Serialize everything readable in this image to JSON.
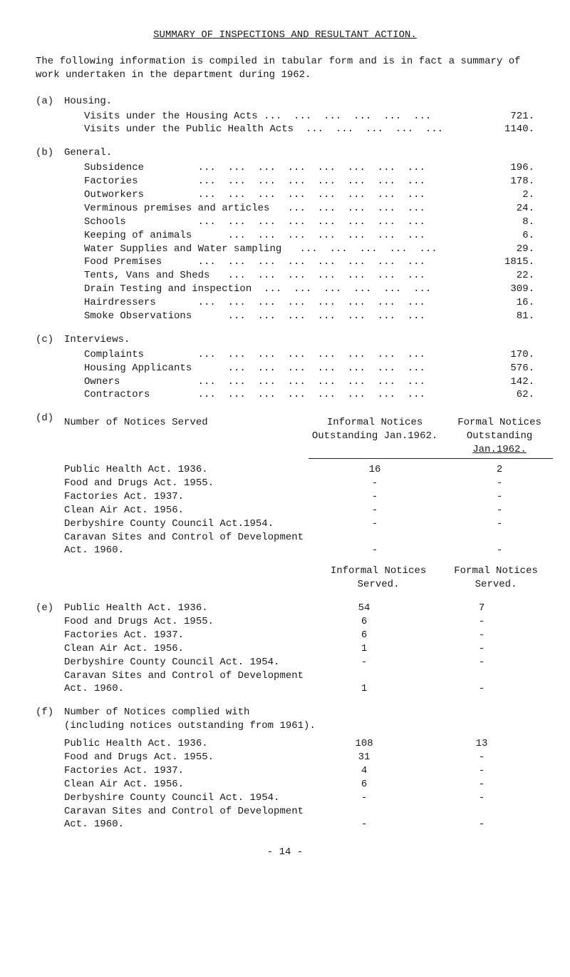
{
  "title": "SUMMARY OF INSPECTIONS AND RESULTANT ACTION.",
  "intro": "The following information is compiled in tabular form and is in fact a summary of work undertaken in the department during 1962.",
  "sections": {
    "a": {
      "label": "(a)",
      "heading": "Housing.",
      "rows": [
        {
          "label": "Visits under the Housing Acts ...  ...  ...  ...  ...  ...",
          "val": "721."
        },
        {
          "label": "Visits under the Public Health Acts  ...  ...  ...  ...  ...",
          "val": "1140."
        }
      ]
    },
    "b": {
      "label": "(b)",
      "heading": "General.",
      "rows": [
        {
          "label": "Subsidence         ...  ...  ...  ...  ...  ...  ...  ...",
          "val": "196."
        },
        {
          "label": "Factories          ...  ...  ...  ...  ...  ...  ...  ...",
          "val": "178."
        },
        {
          "label": "Outworkers         ...  ...  ...  ...  ...  ...  ...  ...",
          "val": "2."
        },
        {
          "label": "Verminous premises and articles   ...  ...  ...  ...  ...",
          "val": "24."
        },
        {
          "label": "Schools            ...  ...  ...  ...  ...  ...  ...  ...",
          "val": "8."
        },
        {
          "label": "Keeping of animals      ...  ...  ...  ...  ...  ...  ...",
          "val": "6."
        },
        {
          "label": "Water Supplies and Water sampling   ...  ...  ...  ...  ...",
          "val": "29."
        },
        {
          "label": "Food Premises      ...  ...  ...  ...  ...  ...  ...  ...",
          "val": "1815."
        },
        {
          "label": "Tents, Vans and Sheds   ...  ...  ...  ...  ...  ...  ...",
          "val": "22."
        },
        {
          "label": "Drain Testing and inspection  ...  ...  ...  ...  ...  ...",
          "val": "309."
        },
        {
          "label": "Hairdressers       ...  ...  ...  ...  ...  ...  ...  ...",
          "val": "16."
        },
        {
          "label": "Smoke Observations      ...  ...  ...  ...  ...  ...  ...",
          "val": "81."
        }
      ]
    },
    "c": {
      "label": "(c)",
      "heading": "Interviews.",
      "rows": [
        {
          "label": "Complaints         ...  ...  ...  ...  ...  ...  ...  ...",
          "val": "170."
        },
        {
          "label": "Housing Applicants      ...  ...  ...  ...  ...  ...  ...",
          "val": "576."
        },
        {
          "label": "Owners             ...  ...  ...  ...  ...  ...  ...  ...",
          "val": "142."
        },
        {
          "label": "Contractors        ...  ...  ...  ...  ...  ...  ...  ...",
          "val": "62."
        }
      ]
    },
    "d": {
      "label": "(d)",
      "heading": "Number of Notices Served",
      "col_mid_1": "Informal Notices",
      "col_mid_2": "Outstanding Jan.1962.",
      "col_right_1": "Formal Notices",
      "col_right_2": "Outstanding",
      "col_right_3": "Jan.1962.",
      "rows": [
        {
          "c1": "Public Health Act. 1936.",
          "c2": "16",
          "c3": "2"
        },
        {
          "c1": "Food and Drugs Act. 1955.",
          "c2": "-",
          "c3": "-"
        },
        {
          "c1": "Factories Act. 1937.",
          "c2": "-",
          "c3": "-"
        },
        {
          "c1": "Clean Air Act. 1956.",
          "c2": "-",
          "c3": "-"
        },
        {
          "c1": "Derbyshire County Council Act.1954.",
          "c2": "-",
          "c3": "-"
        },
        {
          "c1": "Caravan Sites and Control of Development",
          "c2": "",
          "c3": ""
        },
        {
          "c1": "Act. 1960.",
          "c2": "-",
          "c3": "-"
        }
      ],
      "mid2_h1": "Informal Notices",
      "mid2_h2": "Served.",
      "right2_h1": "Formal Notices",
      "right2_h2": "Served."
    },
    "e": {
      "label": "(e)",
      "rows": [
        {
          "c1": "Public Health Act. 1936.",
          "c2": "54",
          "c3": "7"
        },
        {
          "c1": "Food and Drugs Act. 1955.",
          "c2": "6",
          "c3": "-"
        },
        {
          "c1": "Factories Act. 1937.",
          "c2": "6",
          "c3": "-"
        },
        {
          "c1": "Clean Air Act. 1956.",
          "c2": "1",
          "c3": "-"
        },
        {
          "c1": "Derbyshire County Council Act. 1954.",
          "c2": "-",
          "c3": "-"
        },
        {
          "c1": "Caravan Sites and Control of Development",
          "c2": "",
          "c3": ""
        },
        {
          "c1": "Act. 1960.",
          "c2": "1",
          "c3": "-"
        }
      ]
    },
    "f": {
      "label": "(f)",
      "heading1": "Number of Notices complied with",
      "heading2": "(including notices outstanding from 1961).",
      "rows": [
        {
          "c1": "Public Health Act. 1936.",
          "c2": "108",
          "c3": "13"
        },
        {
          "c1": "Food and Drugs Act. 1955.",
          "c2": "31",
          "c3": "-"
        },
        {
          "c1": "Factories Act. 1937.",
          "c2": "4",
          "c3": "-"
        },
        {
          "c1": "Clean Air Act. 1956.",
          "c2": "6",
          "c3": "-"
        },
        {
          "c1": "Derbyshire County Council Act. 1954.",
          "c2": "-",
          "c3": "-"
        },
        {
          "c1": "Caravan Sites and Control of Development",
          "c2": "",
          "c3": ""
        },
        {
          "c1": "Act. 1960.",
          "c2": "-",
          "c3": "-"
        }
      ]
    }
  },
  "page_num": "- 14 -"
}
